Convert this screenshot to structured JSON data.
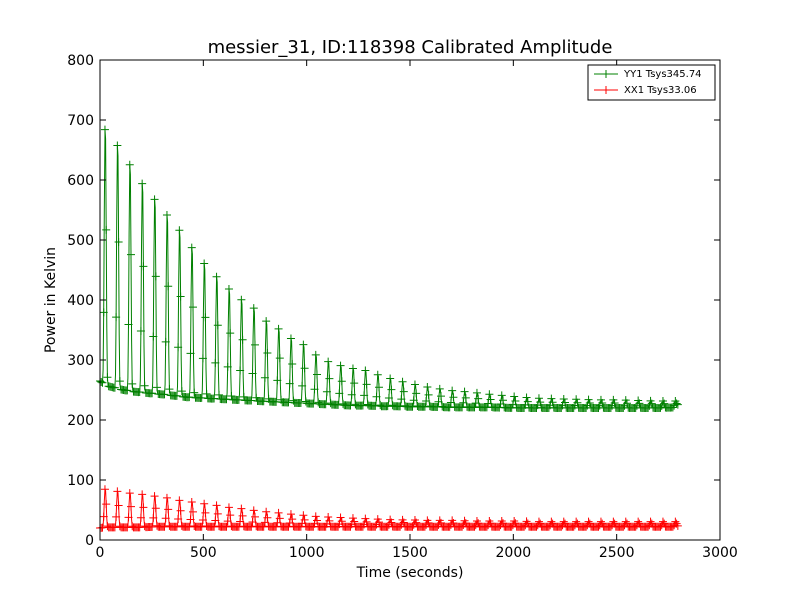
{
  "chart_data": {
    "type": "line",
    "title": "messier_31, ID:118398 Calibrated Amplitude",
    "xlabel": "Time (seconds)",
    "ylabel": "Power in Kelvin",
    "xlim": [
      0,
      3000
    ],
    "ylim": [
      0,
      800
    ],
    "xticks": [
      0,
      500,
      1000,
      1500,
      2000,
      2500,
      3000
    ],
    "yticks": [
      0,
      100,
      200,
      300,
      400,
      500,
      600,
      700,
      800
    ],
    "grid": false,
    "legend_position": "top-right",
    "marker": "+",
    "oscillation_period_seconds": 60,
    "series": [
      {
        "name": "YY1 Tsys345.74",
        "color": "#008000",
        "x": [
          0,
          25,
          85,
          145,
          200,
          260,
          320,
          370,
          420,
          470,
          520,
          580,
          630,
          690,
          750,
          800,
          860,
          920,
          980,
          1040,
          1100,
          1160,
          1220,
          1290,
          1360,
          1430,
          1500,
          1600,
          1700,
          1800,
          1900,
          2000,
          2100,
          2200,
          2300,
          2400,
          2500,
          2600,
          2700,
          2790,
          2800
        ],
        "peaks": [
          640,
          700,
          670,
          637,
          607,
          580,
          553,
          533,
          505,
          485,
          460,
          440,
          422,
          404,
          390,
          370,
          357,
          340,
          330,
          312,
          300,
          293,
          288,
          284,
          275,
          268,
          262,
          255,
          250,
          247,
          243,
          240,
          237,
          236,
          235,
          234,
          234,
          233,
          232,
          232,
          245
        ],
        "troughs": [
          265,
          258,
          252,
          248,
          246,
          244,
          242,
          240,
          238,
          237,
          236,
          235,
          234,
          233,
          232,
          231,
          230,
          229,
          228,
          227,
          226,
          225,
          224,
          224,
          223,
          223,
          222,
          222,
          221,
          221,
          221,
          220,
          220,
          220,
          220,
          220,
          220,
          220,
          220,
          221,
          228
        ]
      },
      {
        "name": "XX1 Tsys33.06",
        "color": "#ff0000",
        "x": [
          0,
          25,
          85,
          145,
          200,
          260,
          320,
          370,
          420,
          470,
          520,
          580,
          630,
          690,
          750,
          800,
          860,
          920,
          980,
          1040,
          1100,
          1160,
          1220,
          1290,
          1360,
          1430,
          1500,
          1600,
          1700,
          1800,
          1900,
          2000,
          2100,
          2200,
          2300,
          2400,
          2500,
          2600,
          2700,
          2790,
          2800
        ],
        "peaks": [
          80,
          87,
          83,
          80,
          78,
          75,
          72,
          68,
          66,
          63,
          61,
          58,
          55,
          53,
          50,
          48,
          46,
          44,
          42,
          40,
          39,
          38,
          37,
          36,
          35,
          34,
          34,
          33,
          33,
          32,
          32,
          32,
          31,
          31,
          31,
          31,
          31,
          31,
          31,
          31,
          38
        ],
        "troughs": [
          20,
          21,
          21,
          21,
          21,
          22,
          22,
          22,
          22,
          22,
          22,
          22,
          22,
          22,
          22,
          22,
          22,
          22,
          22,
          22,
          22,
          22,
          22,
          22,
          22,
          22,
          22,
          22,
          22,
          22,
          22,
          22,
          22,
          22,
          22,
          22,
          22,
          22,
          22,
          22,
          24
        ]
      }
    ]
  }
}
